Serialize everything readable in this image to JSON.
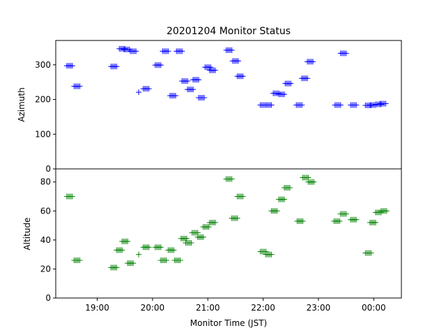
{
  "chart_data": [
    {
      "type": "scatter",
      "title": "20201204 Monitor Status",
      "xlabel": "",
      "ylabel": "Azimuth",
      "marker": "+",
      "color": "#0000ff",
      "xlim": [
        "18:15",
        "00:30"
      ],
      "ylim": [
        0,
        370
      ],
      "yticks": [
        0,
        100,
        200,
        300
      ],
      "yticklabels": [
        "0",
        "100",
        "200",
        "300"
      ],
      "clusters": [
        {
          "x": "18:30",
          "y": 297
        },
        {
          "x": "18:38",
          "y": 238
        },
        {
          "x": "19:18",
          "y": 295
        },
        {
          "x": "19:27",
          "y": 346
        },
        {
          "x": "19:32",
          "y": 344
        },
        {
          "x": "19:39",
          "y": 339
        },
        {
          "x": "19:45",
          "y": 221,
          "single": true
        },
        {
          "x": "19:53",
          "y": 231
        },
        {
          "x": "20:06",
          "y": 299
        },
        {
          "x": "20:14",
          "y": 339
        },
        {
          "x": "20:22",
          "y": 211
        },
        {
          "x": "20:29",
          "y": 339
        },
        {
          "x": "20:35",
          "y": 253
        },
        {
          "x": "20:41",
          "y": 229
        },
        {
          "x": "20:47",
          "y": 257
        },
        {
          "x": "20:53",
          "y": 205
        },
        {
          "x": "21:00",
          "y": 293
        },
        {
          "x": "21:05",
          "y": 284
        },
        {
          "x": "21:23",
          "y": 342
        },
        {
          "x": "21:30",
          "y": 311
        },
        {
          "x": "21:35",
          "y": 267
        },
        {
          "x": "22:00",
          "y": 184
        },
        {
          "x": "22:06",
          "y": 184
        },
        {
          "x": "22:14",
          "y": 218
        },
        {
          "x": "22:20",
          "y": 215
        },
        {
          "x": "22:27",
          "y": 246
        },
        {
          "x": "22:39",
          "y": 184
        },
        {
          "x": "22:45",
          "y": 261
        },
        {
          "x": "22:51",
          "y": 309
        },
        {
          "x": "23:21",
          "y": 184
        },
        {
          "x": "23:27",
          "y": 333
        },
        {
          "x": "23:38",
          "y": 184
        },
        {
          "x": "23:54",
          "y": 183
        },
        {
          "x": "23:59",
          "y": 184
        },
        {
          "x": "00:05",
          "y": 186
        },
        {
          "x": "00:10",
          "y": 188
        }
      ]
    },
    {
      "type": "scatter",
      "title": "",
      "xlabel": "Monitor Time (JST)",
      "ylabel": "Altitude",
      "marker": "+",
      "color": "#008000",
      "xlim": [
        "18:15",
        "00:30"
      ],
      "ylim": [
        0,
        89
      ],
      "yticks": [
        0,
        20,
        40,
        60,
        80
      ],
      "yticklabels": [
        "0",
        "20",
        "40",
        "60",
        "80"
      ],
      "xticks": [
        "19:00",
        "20:00",
        "21:00",
        "22:00",
        "23:00",
        "00:00"
      ],
      "xticklabels": [
        "19:00",
        "20:00",
        "21:00",
        "22:00",
        "23:00",
        "00:00"
      ],
      "clusters": [
        {
          "x": "18:30",
          "y": 70
        },
        {
          "x": "18:38",
          "y": 26
        },
        {
          "x": "19:18",
          "y": 21
        },
        {
          "x": "19:24",
          "y": 33
        },
        {
          "x": "19:30",
          "y": 39
        },
        {
          "x": "19:36",
          "y": 24
        },
        {
          "x": "19:45",
          "y": 30,
          "single": true
        },
        {
          "x": "19:53",
          "y": 35
        },
        {
          "x": "20:06",
          "y": 35
        },
        {
          "x": "20:12",
          "y": 26
        },
        {
          "x": "20:20",
          "y": 33
        },
        {
          "x": "20:27",
          "y": 26
        },
        {
          "x": "20:34",
          "y": 41
        },
        {
          "x": "20:39",
          "y": 38
        },
        {
          "x": "20:46",
          "y": 45
        },
        {
          "x": "20:52",
          "y": 42
        },
        {
          "x": "20:58",
          "y": 49
        },
        {
          "x": "21:05",
          "y": 52
        },
        {
          "x": "21:23",
          "y": 82
        },
        {
          "x": "21:29",
          "y": 55
        },
        {
          "x": "21:35",
          "y": 70
        },
        {
          "x": "22:00",
          "y": 32
        },
        {
          "x": "22:06",
          "y": 30
        },
        {
          "x": "22:12",
          "y": 60
        },
        {
          "x": "22:20",
          "y": 68
        },
        {
          "x": "22:26",
          "y": 76
        },
        {
          "x": "22:40",
          "y": 53
        },
        {
          "x": "22:46",
          "y": 83
        },
        {
          "x": "22:52",
          "y": 80
        },
        {
          "x": "23:20",
          "y": 53
        },
        {
          "x": "23:27",
          "y": 58
        },
        {
          "x": "23:38",
          "y": 54
        },
        {
          "x": "23:54",
          "y": 31
        },
        {
          "x": "23:59",
          "y": 52
        },
        {
          "x": "00:05",
          "y": 59
        },
        {
          "x": "00:11",
          "y": 60
        }
      ]
    }
  ]
}
